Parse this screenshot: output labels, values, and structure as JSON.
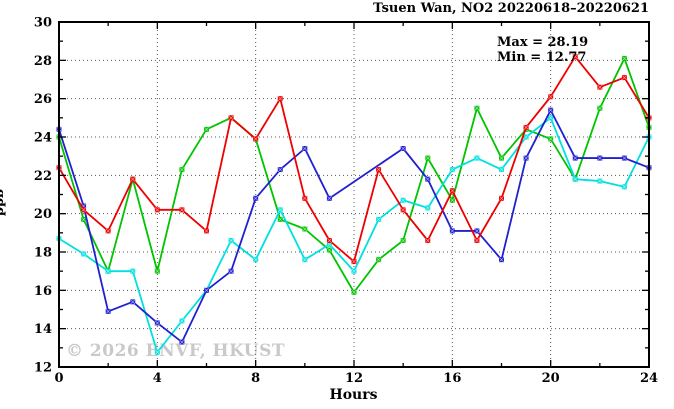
{
  "watermark": "© 2026 ENVF, HKUST",
  "chart_data": {
    "type": "line",
    "title": "Tsuen Wan, NO2 20220618–20220621",
    "xlabel": "Hours",
    "ylabel": "ppb",
    "xlim": [
      0,
      24
    ],
    "ylim": [
      12,
      30
    ],
    "x_major_ticks": [
      0,
      4,
      8,
      12,
      16,
      20,
      24
    ],
    "x_minor_step": 2,
    "y_major_ticks": [
      12,
      14,
      16,
      18,
      20,
      22,
      24,
      26,
      28,
      30
    ],
    "y_minor_step": 1,
    "grid": "dotted at major ticks",
    "legend_position": "none",
    "annotations": {
      "max_label": "Max = 28.19",
      "min_label": "Min = 12.77"
    },
    "max": 28.19,
    "min": 12.77,
    "x": [
      0,
      1,
      2,
      3,
      4,
      5,
      6,
      7,
      8,
      9,
      10,
      11,
      12,
      13,
      14,
      15,
      16,
      17,
      18,
      19,
      20,
      21,
      22,
      23,
      24
    ],
    "series": [
      {
        "name": "series-green",
        "color": "#00c400",
        "values": [
          24.0,
          19.7,
          17.0,
          21.8,
          17.0,
          22.3,
          24.4,
          25.0,
          23.9,
          19.7,
          19.2,
          18.1,
          15.9,
          17.6,
          18.6,
          22.9,
          20.7,
          25.5,
          22.9,
          24.4,
          23.9,
          21.8,
          25.5,
          28.1,
          24.5
        ]
      },
      {
        "name": "series-cyan",
        "color": "#00e0e0",
        "values": [
          18.7,
          17.9,
          17.0,
          17.0,
          12.77,
          14.4,
          16.0,
          18.6,
          17.6,
          20.2,
          17.6,
          18.4,
          17.0,
          19.7,
          20.7,
          20.3,
          22.3,
          22.9,
          22.3,
          24.0,
          25.0,
          21.8,
          21.7,
          21.4,
          24.0
        ]
      },
      {
        "name": "series-blue",
        "color": "#2020d0",
        "values": [
          24.4,
          20.4,
          14.9,
          15.4,
          14.3,
          13.3,
          16.0,
          17.0,
          20.8,
          22.3,
          23.4,
          20.8,
          null,
          null,
          23.4,
          21.8,
          19.1,
          19.1,
          17.6,
          22.9,
          25.4,
          22.9,
          22.9,
          22.9,
          22.4
        ]
      },
      {
        "name": "series-red",
        "color": "#ee0000",
        "values": [
          22.4,
          20.2,
          19.1,
          21.8,
          20.2,
          20.2,
          19.1,
          25.0,
          23.9,
          26.0,
          20.8,
          18.6,
          17.5,
          22.3,
          20.2,
          18.6,
          21.2,
          18.6,
          20.8,
          24.5,
          26.1,
          28.19,
          26.6,
          27.1,
          25.0
        ]
      }
    ]
  }
}
